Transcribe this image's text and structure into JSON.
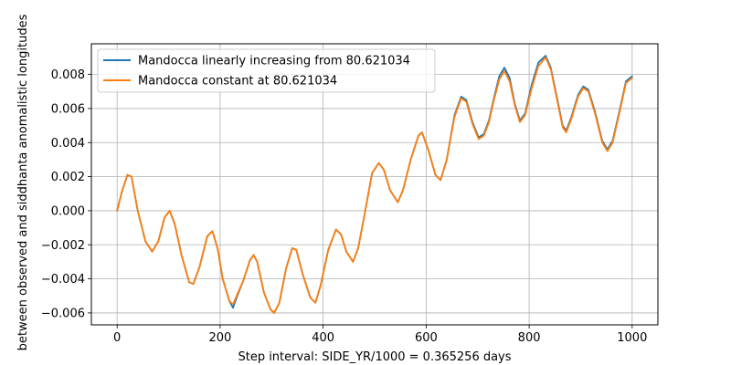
{
  "chart_data": {
    "type": "line",
    "title": "",
    "xlabel": "Step interval: SIDE_YR/1000 = 0.365256 days",
    "ylabel": "between observed and siddhanta anomalistic longitudes",
    "xlim": [
      -50,
      1050
    ],
    "ylim": [
      -0.0067,
      0.0098
    ],
    "xticks": [
      0,
      200,
      400,
      600,
      800,
      1000
    ],
    "xtick_labels": [
      "0",
      "200",
      "400",
      "600",
      "800",
      "1000"
    ],
    "yticks": [
      -0.006,
      -0.004,
      -0.002,
      0.0,
      0.002,
      0.004,
      0.006,
      0.008
    ],
    "ytick_labels": [
      "−0.006",
      "−0.004",
      "−0.002",
      "0.000",
      "0.002",
      "0.004",
      "0.006",
      "0.008"
    ],
    "grid": true,
    "legend_position": "top-left",
    "series": [
      {
        "name": "Mandocca linearly increasing from 80.621034",
        "color": "#1f77b4",
        "points": [
          [
            0,
            0.0
          ],
          [
            10,
            0.0012
          ],
          [
            20,
            0.0021
          ],
          [
            28,
            0.002
          ],
          [
            40,
            0.0
          ],
          [
            55,
            -0.0018
          ],
          [
            68,
            -0.0024
          ],
          [
            80,
            -0.0018
          ],
          [
            92,
            -0.0004
          ],
          [
            102,
            0.0
          ],
          [
            112,
            -0.0008
          ],
          [
            125,
            -0.0026
          ],
          [
            140,
            -0.0042
          ],
          [
            148,
            -0.0043
          ],
          [
            160,
            -0.0033
          ],
          [
            175,
            -0.0015
          ],
          [
            185,
            -0.0012
          ],
          [
            195,
            -0.0022
          ],
          [
            205,
            -0.004
          ],
          [
            218,
            -0.0053
          ],
          [
            225,
            -0.0057
          ],
          [
            232,
            -0.0051
          ],
          [
            245,
            -0.0041
          ],
          [
            258,
            -0.0029
          ],
          [
            265,
            -0.0026
          ],
          [
            272,
            -0.003
          ],
          [
            285,
            -0.0048
          ],
          [
            298,
            -0.0058
          ],
          [
            305,
            -0.006
          ],
          [
            315,
            -0.0054
          ],
          [
            328,
            -0.0034
          ],
          [
            340,
            -0.0022
          ],
          [
            348,
            -0.0023
          ],
          [
            360,
            -0.0037
          ],
          [
            375,
            -0.0051
          ],
          [
            385,
            -0.0054
          ],
          [
            395,
            -0.0044
          ],
          [
            410,
            -0.0023
          ],
          [
            425,
            -0.0011
          ],
          [
            435,
            -0.0014
          ],
          [
            445,
            -0.0024
          ],
          [
            458,
            -0.003
          ],
          [
            468,
            -0.0022
          ],
          [
            480,
            -0.0003
          ],
          [
            495,
            0.0022
          ],
          [
            508,
            0.0028
          ],
          [
            518,
            0.0024
          ],
          [
            530,
            0.0012
          ],
          [
            545,
            0.0005
          ],
          [
            555,
            0.0012
          ],
          [
            570,
            0.003
          ],
          [
            585,
            0.0044
          ],
          [
            592,
            0.0046
          ],
          [
            605,
            0.0035
          ],
          [
            618,
            0.0021
          ],
          [
            628,
            0.0018
          ],
          [
            640,
            0.003
          ],
          [
            655,
            0.0056
          ],
          [
            668,
            0.0067
          ],
          [
            678,
            0.0065
          ],
          [
            690,
            0.0052
          ],
          [
            702,
            0.0043
          ],
          [
            712,
            0.0045
          ],
          [
            722,
            0.0053
          ],
          [
            730,
            0.0064
          ],
          [
            742,
            0.0079
          ],
          [
            752,
            0.0084
          ],
          [
            762,
            0.0078
          ],
          [
            772,
            0.0063
          ],
          [
            782,
            0.0053
          ],
          [
            792,
            0.0057
          ],
          [
            805,
            0.0074
          ],
          [
            818,
            0.0087
          ],
          [
            832,
            0.0091
          ],
          [
            842,
            0.0084
          ],
          [
            855,
            0.0065
          ],
          [
            865,
            0.005
          ],
          [
            872,
            0.0047
          ],
          [
            882,
            0.0055
          ],
          [
            895,
            0.0068
          ],
          [
            905,
            0.0073
          ],
          [
            915,
            0.0071
          ],
          [
            928,
            0.0058
          ],
          [
            942,
            0.0041
          ],
          [
            952,
            0.0036
          ],
          [
            962,
            0.0041
          ],
          [
            975,
            0.0058
          ],
          [
            988,
            0.0076
          ],
          [
            1000,
            0.0079
          ]
        ]
      },
      {
        "name": "Mandocca constant at 80.621034",
        "color": "#ff7f0e",
        "points": [
          [
            0,
            0.0
          ],
          [
            10,
            0.0012
          ],
          [
            20,
            0.0021
          ],
          [
            28,
            0.002
          ],
          [
            40,
            0.0
          ],
          [
            55,
            -0.0018
          ],
          [
            68,
            -0.0024
          ],
          [
            80,
            -0.0018
          ],
          [
            92,
            -0.0004
          ],
          [
            102,
            0.0
          ],
          [
            112,
            -0.0008
          ],
          [
            125,
            -0.0026
          ],
          [
            140,
            -0.0042
          ],
          [
            148,
            -0.0043
          ],
          [
            160,
            -0.0033
          ],
          [
            175,
            -0.0015
          ],
          [
            185,
            -0.0012
          ],
          [
            195,
            -0.0022
          ],
          [
            205,
            -0.004
          ],
          [
            218,
            -0.0053
          ],
          [
            225,
            -0.0055
          ],
          [
            232,
            -0.005
          ],
          [
            245,
            -0.0041
          ],
          [
            258,
            -0.0029
          ],
          [
            265,
            -0.0026
          ],
          [
            272,
            -0.003
          ],
          [
            285,
            -0.0048
          ],
          [
            298,
            -0.0058
          ],
          [
            305,
            -0.006
          ],
          [
            315,
            -0.0054
          ],
          [
            328,
            -0.0034
          ],
          [
            340,
            -0.0022
          ],
          [
            348,
            -0.0023
          ],
          [
            360,
            -0.0037
          ],
          [
            375,
            -0.0051
          ],
          [
            385,
            -0.0054
          ],
          [
            395,
            -0.0044
          ],
          [
            410,
            -0.0023
          ],
          [
            425,
            -0.0011
          ],
          [
            435,
            -0.0014
          ],
          [
            445,
            -0.0024
          ],
          [
            458,
            -0.003
          ],
          [
            468,
            -0.0022
          ],
          [
            480,
            -0.0003
          ],
          [
            495,
            0.0022
          ],
          [
            508,
            0.0028
          ],
          [
            518,
            0.0024
          ],
          [
            530,
            0.0012
          ],
          [
            545,
            0.0005
          ],
          [
            555,
            0.0012
          ],
          [
            570,
            0.003
          ],
          [
            585,
            0.0044
          ],
          [
            592,
            0.0046
          ],
          [
            605,
            0.0035
          ],
          [
            618,
            0.0021
          ],
          [
            628,
            0.0018
          ],
          [
            640,
            0.003
          ],
          [
            655,
            0.0055
          ],
          [
            668,
            0.0066
          ],
          [
            678,
            0.0064
          ],
          [
            690,
            0.0051
          ],
          [
            702,
            0.0042
          ],
          [
            712,
            0.0044
          ],
          [
            722,
            0.0052
          ],
          [
            730,
            0.0063
          ],
          [
            742,
            0.0077
          ],
          [
            752,
            0.0082
          ],
          [
            762,
            0.0076
          ],
          [
            772,
            0.0062
          ],
          [
            782,
            0.0052
          ],
          [
            792,
            0.0056
          ],
          [
            805,
            0.0072
          ],
          [
            818,
            0.0085
          ],
          [
            832,
            0.009
          ],
          [
            842,
            0.0083
          ],
          [
            855,
            0.0064
          ],
          [
            865,
            0.0049
          ],
          [
            872,
            0.0046
          ],
          [
            882,
            0.0054
          ],
          [
            895,
            0.0067
          ],
          [
            905,
            0.0072
          ],
          [
            915,
            0.007
          ],
          [
            928,
            0.0057
          ],
          [
            942,
            0.004
          ],
          [
            952,
            0.0035
          ],
          [
            962,
            0.004
          ],
          [
            975,
            0.0057
          ],
          [
            988,
            0.0075
          ],
          [
            1000,
            0.0078
          ]
        ]
      }
    ]
  }
}
